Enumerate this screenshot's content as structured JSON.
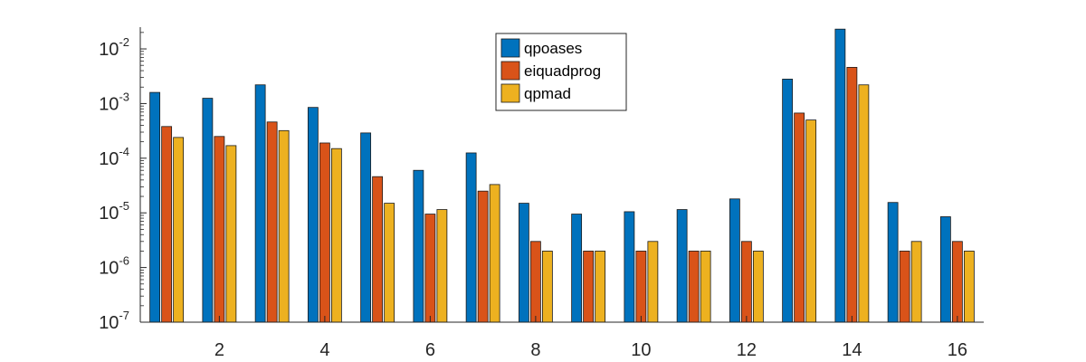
{
  "chart_data": {
    "type": "bar",
    "yscale": "log",
    "ylim": [
      1e-07,
      0.025
    ],
    "title": "",
    "xlabel": "",
    "ylabel": "",
    "grid": false,
    "legend_position": "top-center",
    "categories": [
      1,
      2,
      3,
      4,
      5,
      6,
      7,
      8,
      9,
      10,
      11,
      12,
      13,
      14,
      15,
      16
    ],
    "x_tick_labels": [
      "2",
      "4",
      "6",
      "8",
      "10",
      "12",
      "14",
      "16"
    ],
    "y_tick_labels": [
      {
        "base": "10",
        "exp": "-7"
      },
      {
        "base": "10",
        "exp": "-6"
      },
      {
        "base": "10",
        "exp": "-5"
      },
      {
        "base": "10",
        "exp": "-4"
      },
      {
        "base": "10",
        "exp": "-3"
      },
      {
        "base": "10",
        "exp": "-2"
      }
    ],
    "series": [
      {
        "name": "qpoases",
        "color": "#0072BD",
        "values": [
          0.0016,
          0.00125,
          0.0022,
          0.00085,
          0.00029,
          6e-05,
          0.000125,
          1.5e-05,
          9.5e-06,
          1.05e-05,
          1.15e-05,
          1.8e-05,
          0.0028,
          0.023,
          1.55e-05,
          8.5e-06
        ]
      },
      {
        "name": "eiquadprog",
        "color": "#D95319",
        "values": [
          0.00038,
          0.00025,
          0.00046,
          0.00019,
          4.6e-05,
          9.5e-06,
          2.5e-05,
          3e-06,
          2e-06,
          2e-06,
          2e-06,
          3e-06,
          0.00067,
          0.0046,
          2e-06,
          3e-06
        ]
      },
      {
        "name": "qpmad",
        "color": "#EDB120",
        "values": [
          0.00024,
          0.00017,
          0.00032,
          0.00015,
          1.5e-05,
          1.15e-05,
          3.3e-05,
          2e-06,
          2e-06,
          3e-06,
          2e-06,
          2e-06,
          0.0005,
          0.0022,
          3e-06,
          2e-06
        ]
      }
    ]
  }
}
